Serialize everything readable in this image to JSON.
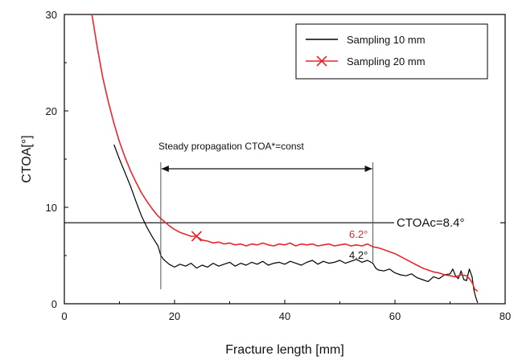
{
  "chart_data": {
    "type": "line",
    "xlabel": "Fracture length [mm]",
    "ylabel": "CTOA[°]",
    "xlim": [
      0,
      80
    ],
    "ylim": [
      0,
      30
    ],
    "x_ticks": [
      "0",
      "20",
      "40",
      "60",
      "80"
    ],
    "y_ticks": [
      "0",
      "10",
      "20",
      "30"
    ],
    "legend_position": "top-right",
    "series": [
      {
        "name": "Sampling 10 mm",
        "color": "#000000",
        "marker": "none",
        "x": [
          9,
          10,
          11,
          12,
          13,
          14,
          15,
          16,
          17,
          17.5,
          18,
          19,
          20,
          21,
          22,
          23,
          24,
          25,
          26,
          27,
          28,
          29,
          30,
          31,
          32,
          33,
          34,
          35,
          36,
          37,
          38,
          39,
          40,
          41,
          42,
          43,
          44,
          45,
          46,
          47,
          48,
          49,
          50,
          51,
          52,
          53,
          54,
          55,
          56,
          56.5,
          57,
          58,
          59,
          60,
          61,
          62,
          63,
          64,
          65,
          66,
          67,
          68,
          69,
          70,
          70.5,
          71,
          71.5,
          72,
          72.5,
          73,
          73.5,
          74,
          74.3,
          74.6,
          75
        ],
        "y": [
          16.5,
          15.0,
          13.6,
          12.2,
          10.6,
          9.1,
          7.9,
          6.9,
          6.0,
          5.0,
          4.6,
          4.1,
          3.8,
          4.1,
          3.9,
          4.2,
          3.7,
          4.0,
          3.8,
          4.2,
          3.9,
          4.1,
          4.3,
          3.9,
          4.2,
          4.0,
          4.3,
          4.1,
          4.4,
          4.0,
          4.2,
          4.3,
          4.1,
          4.4,
          4.2,
          4.0,
          4.3,
          4.5,
          4.1,
          4.4,
          4.2,
          4.3,
          4.5,
          4.2,
          4.4,
          4.6,
          4.3,
          4.5,
          4.2,
          3.7,
          3.5,
          3.4,
          3.6,
          3.2,
          3.0,
          2.9,
          3.1,
          2.7,
          2.5,
          2.3,
          2.8,
          2.6,
          3.0,
          3.1,
          3.6,
          2.9,
          2.6,
          3.4,
          2.5,
          2.4,
          3.6,
          2.8,
          1.5,
          0.8,
          0.1
        ]
      },
      {
        "name": "Sampling 20 mm",
        "color": "#e8262b",
        "marker": "x",
        "marker_points": [
          {
            "x": 24,
            "y": 7.0
          }
        ],
        "x": [
          5,
          6,
          7,
          8,
          9,
          10,
          11,
          12,
          13,
          14,
          15,
          16,
          17,
          18,
          19,
          20,
          21,
          22,
          23,
          24,
          25,
          26,
          27,
          28,
          29,
          30,
          31,
          32,
          33,
          34,
          35,
          36,
          37,
          38,
          39,
          40,
          41,
          42,
          43,
          44,
          45,
          46,
          47,
          48,
          49,
          50,
          51,
          52,
          53,
          54,
          55,
          56,
          57,
          58,
          59,
          60,
          61,
          62,
          63,
          64,
          65,
          66,
          67,
          68,
          69,
          70,
          71,
          72,
          73,
          73.5,
          74,
          74.5,
          75
        ],
        "y": [
          30.0,
          26.5,
          23.4,
          20.9,
          18.7,
          16.8,
          15.2,
          13.8,
          12.6,
          11.5,
          10.6,
          9.8,
          9.1,
          8.6,
          8.1,
          7.7,
          7.4,
          7.2,
          7.0,
          7.0,
          6.6,
          6.5,
          6.3,
          6.4,
          6.2,
          6.3,
          6.1,
          6.2,
          6.0,
          6.2,
          6.1,
          6.3,
          6.1,
          6.0,
          6.2,
          6.1,
          6.3,
          6.0,
          6.2,
          6.1,
          6.2,
          6.0,
          6.1,
          6.2,
          6.0,
          6.1,
          6.2,
          6.0,
          6.1,
          6.0,
          6.2,
          5.9,
          5.8,
          5.6,
          5.4,
          5.2,
          4.9,
          4.6,
          4.3,
          4.0,
          3.7,
          3.5,
          3.3,
          3.2,
          3.0,
          2.9,
          2.8,
          3.0,
          2.9,
          2.6,
          2.2,
          1.5,
          1.3
        ]
      }
    ],
    "annotations": {
      "steady_label": "Steady propagation CTOA*=const",
      "steady_range": [
        17.5,
        56
      ],
      "steady_arrow_y": 14,
      "ctoac_label": "CTOAc=8.4°",
      "ctoac_value": 8.4,
      "red_value_label": "6.2°",
      "black_value_label": "4.2°"
    }
  }
}
